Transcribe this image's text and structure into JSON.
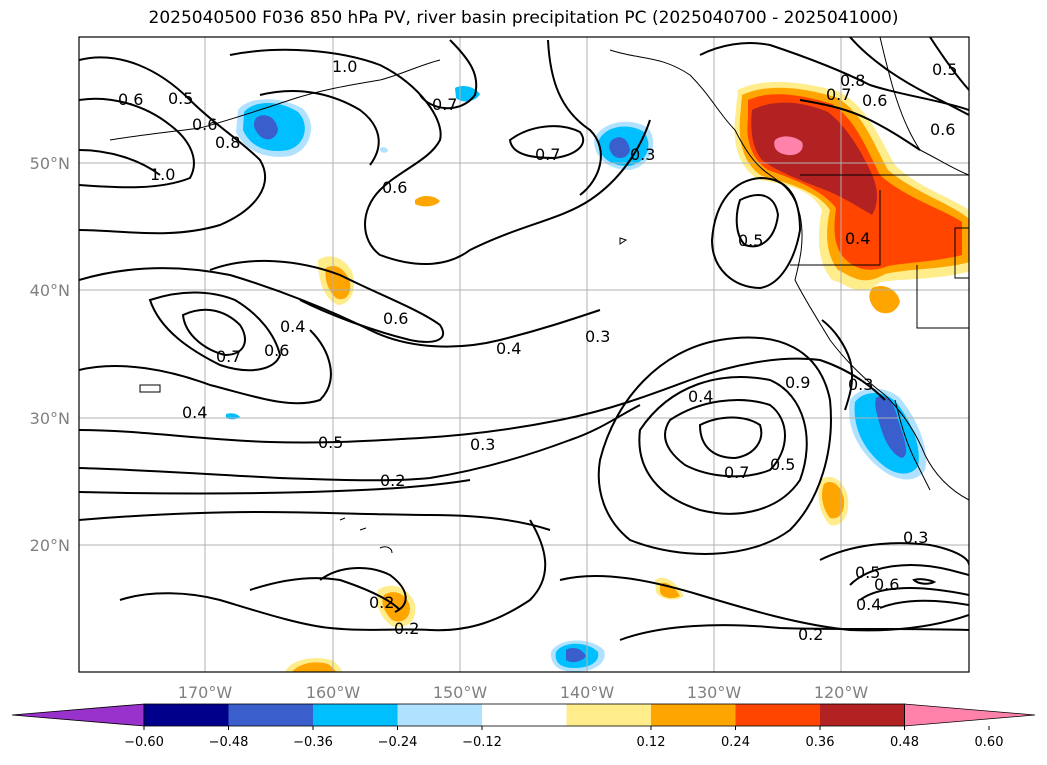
{
  "chart_data": {
    "type": "contour_map",
    "title": "2025040500 F036 850 hPa PV, river basin precipitation PC (2025040700 - 2025041000)",
    "x_ticks": [
      "170°W",
      "160°W",
      "150°W",
      "140°W",
      "130°W",
      "120°W"
    ],
    "y_ticks": [
      "50°N",
      "40°N",
      "30°N",
      "20°N"
    ],
    "contour_labels": [
      "0.6",
      "0.5",
      "1.0",
      "0.6",
      "0.8",
      "1.0",
      "0.7",
      "0.7",
      "0.3",
      "0.8",
      "0.7",
      "0.6",
      "0.6",
      "0.5",
      "0.6",
      "0.5",
      "0.4",
      "0.6",
      "0.7",
      "0.6",
      "0.4",
      "0.4",
      "0.3",
      "0.4",
      "0.9",
      "0.3",
      "0.5",
      "0.3",
      "0.7",
      "0.5",
      "0.2",
      "0.3",
      "0.5",
      "0.6",
      "0.4",
      "0.2",
      "0.2",
      "0.2",
      "0.4"
    ],
    "colorbar": {
      "tick_labels": [
        "−0.60",
        "−0.48",
        "−0.36",
        "−0.24",
        "−0.12",
        "0.12",
        "0.24",
        "0.36",
        "0.48",
        "0.60"
      ],
      "colors": [
        "#9932cc",
        "#00008b",
        "#3a5fcd",
        "#00bfff",
        "#b0e2ff",
        "#ffffff",
        "#ffec8b",
        "#ffa500",
        "#ff4500",
        "#b22222",
        "#ff82ab"
      ]
    }
  }
}
